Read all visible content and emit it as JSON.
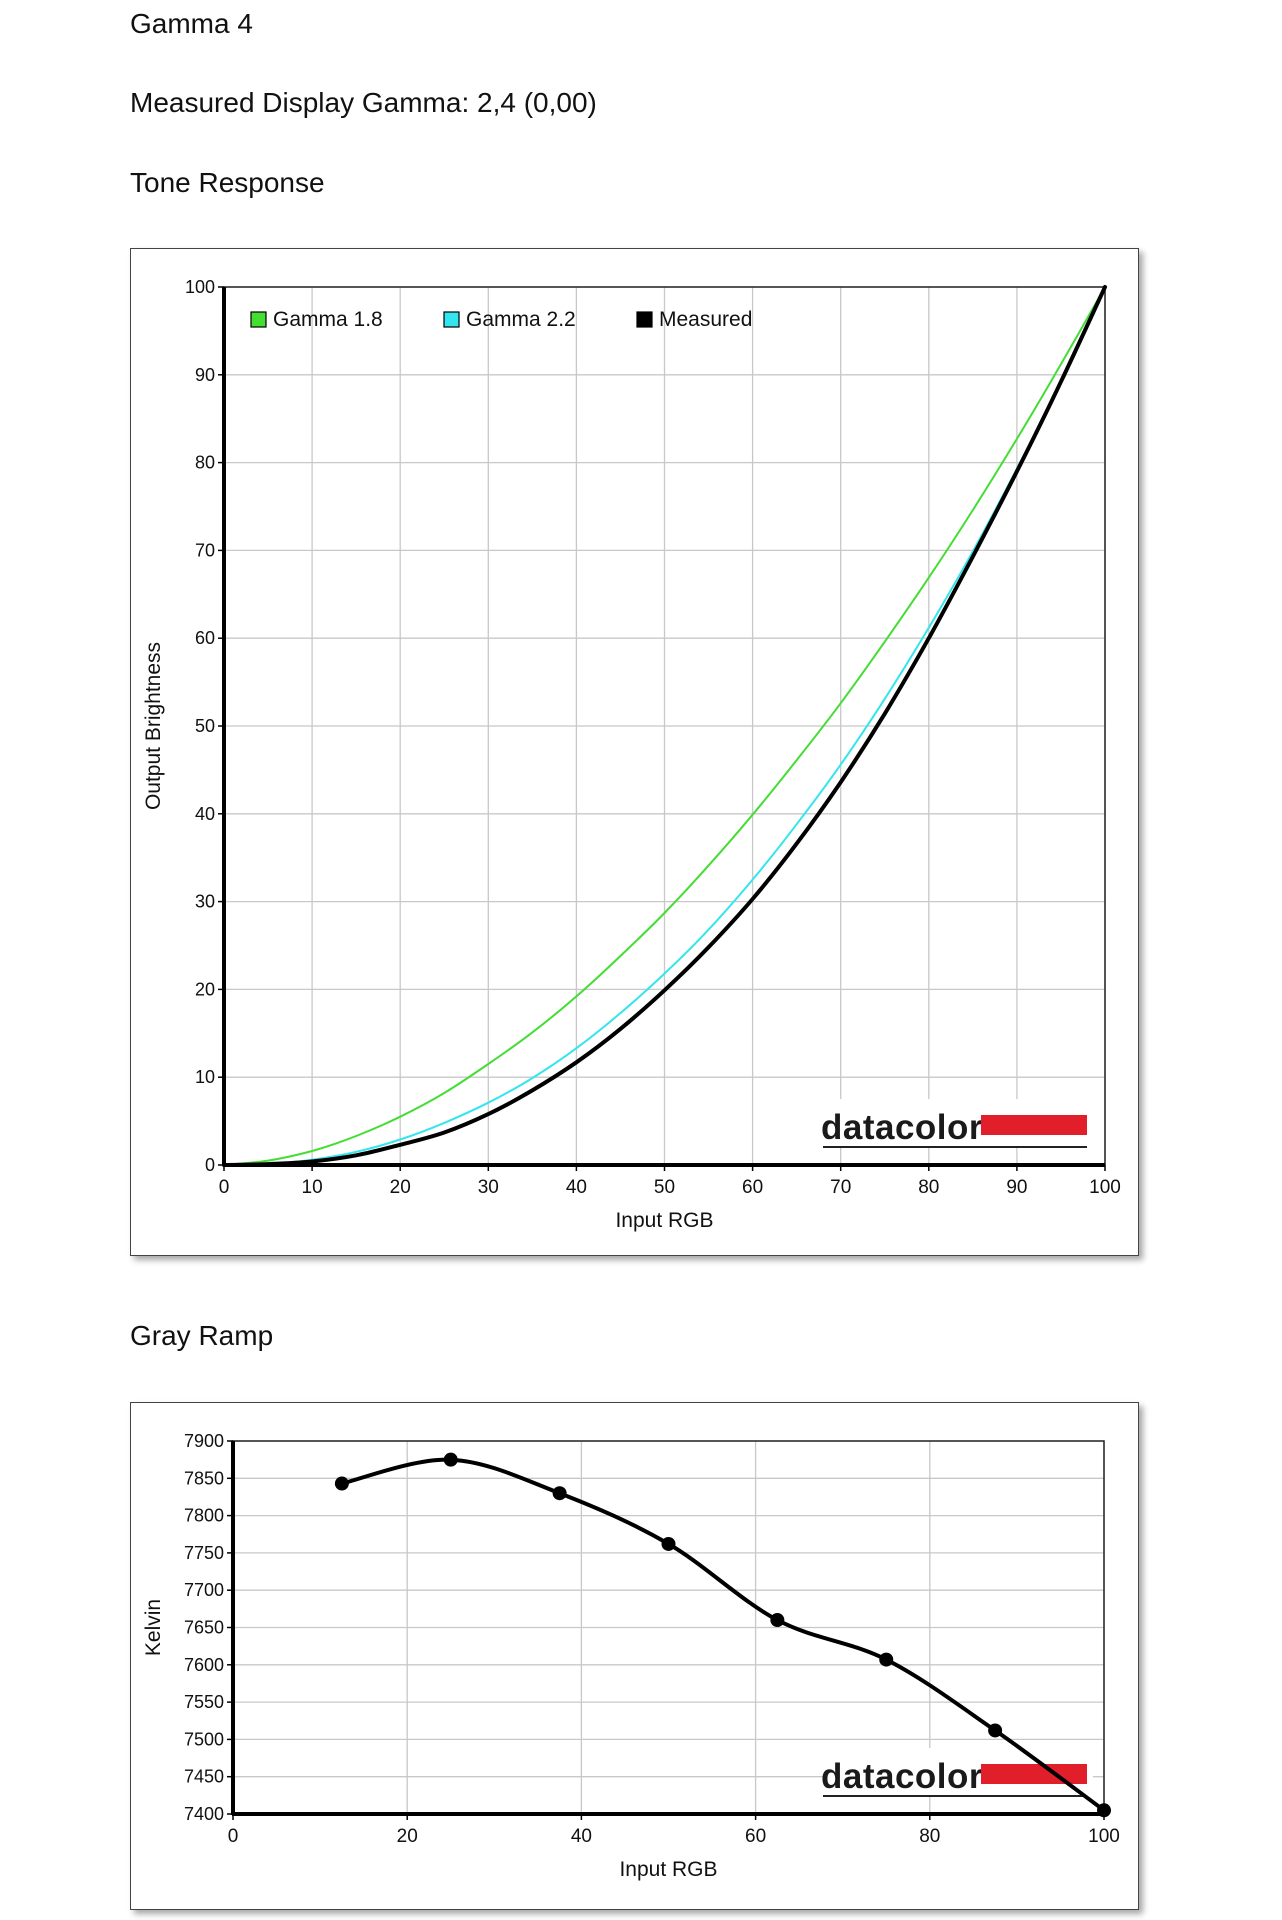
{
  "page": {
    "title": "Gamma 4",
    "measured_label": "Measured Display Gamma: 2,4 (0,00)",
    "section_tone": "Tone Response",
    "section_gray": "Gray Ramp"
  },
  "logo": {
    "text": "datacolor",
    "accent_color": "#e11f2b"
  },
  "chart_data": [
    {
      "type": "line",
      "title": "Tone Response",
      "xlabel": "Input RGB",
      "ylabel": "Output Brightness",
      "xlim": [
        0,
        100
      ],
      "ylim": [
        0,
        100
      ],
      "xticks": [
        0,
        10,
        20,
        30,
        40,
        50,
        60,
        70,
        80,
        90,
        100
      ],
      "yticks": [
        0,
        10,
        20,
        30,
        40,
        50,
        60,
        70,
        80,
        90,
        100
      ],
      "grid": true,
      "legend_position": "top-left",
      "series": [
        {
          "name": "Gamma 1.8",
          "color": "#44dd33",
          "x": [
            0,
            5,
            10,
            15,
            20,
            25,
            30,
            35,
            40,
            45,
            50,
            55,
            60,
            65,
            70,
            75,
            80,
            85,
            90,
            95,
            100
          ],
          "y": [
            0,
            0.5,
            1.6,
            3.3,
            5.5,
            8.2,
            11.5,
            15.1,
            19.2,
            23.8,
            28.7,
            34.1,
            39.9,
            46.1,
            52.6,
            59.6,
            66.9,
            74.6,
            82.7,
            91.2,
            100
          ]
        },
        {
          "name": "Gamma 2.2",
          "color": "#33e5ee",
          "x": [
            0,
            5,
            10,
            15,
            20,
            25,
            30,
            35,
            40,
            45,
            50,
            55,
            60,
            65,
            70,
            75,
            80,
            85,
            90,
            95,
            100
          ],
          "y": [
            0,
            0.1,
            0.6,
            1.5,
            2.9,
            4.8,
            7.1,
            9.9,
            13.3,
            17.3,
            21.8,
            26.8,
            32.5,
            38.8,
            45.6,
            53.1,
            61.2,
            69.9,
            79.3,
            89.3,
            100
          ]
        },
        {
          "name": "Measured",
          "color": "#000000",
          "x": [
            0,
            5,
            10,
            15,
            20,
            25,
            30,
            35,
            40,
            45,
            50,
            55,
            60,
            65,
            70,
            75,
            80,
            85,
            90,
            95,
            100
          ],
          "y": [
            0,
            0.1,
            0.4,
            1.1,
            2.3,
            3.7,
            5.8,
            8.5,
            11.7,
            15.5,
            19.9,
            24.8,
            30.3,
            36.6,
            43.6,
            51.4,
            60.0,
            69.3,
            79.0,
            89.2,
            100
          ]
        }
      ]
    },
    {
      "type": "line",
      "title": "Gray Ramp",
      "xlabel": "Input RGB",
      "ylabel": "Kelvin",
      "xlim": [
        0,
        100
      ],
      "ylim": [
        7400,
        7900
      ],
      "xticks": [
        0,
        20,
        40,
        60,
        80,
        100
      ],
      "yticks": [
        7400,
        7450,
        7500,
        7550,
        7600,
        7650,
        7700,
        7750,
        7800,
        7850,
        7900
      ],
      "grid": true,
      "series": [
        {
          "name": "",
          "color": "#000000",
          "x": [
            12.5,
            25,
            37.5,
            50,
            62.5,
            75,
            87.5,
            100
          ],
          "y": [
            7843,
            7875,
            7830,
            7762,
            7660,
            7607,
            7512,
            7405
          ]
        }
      ]
    }
  ]
}
